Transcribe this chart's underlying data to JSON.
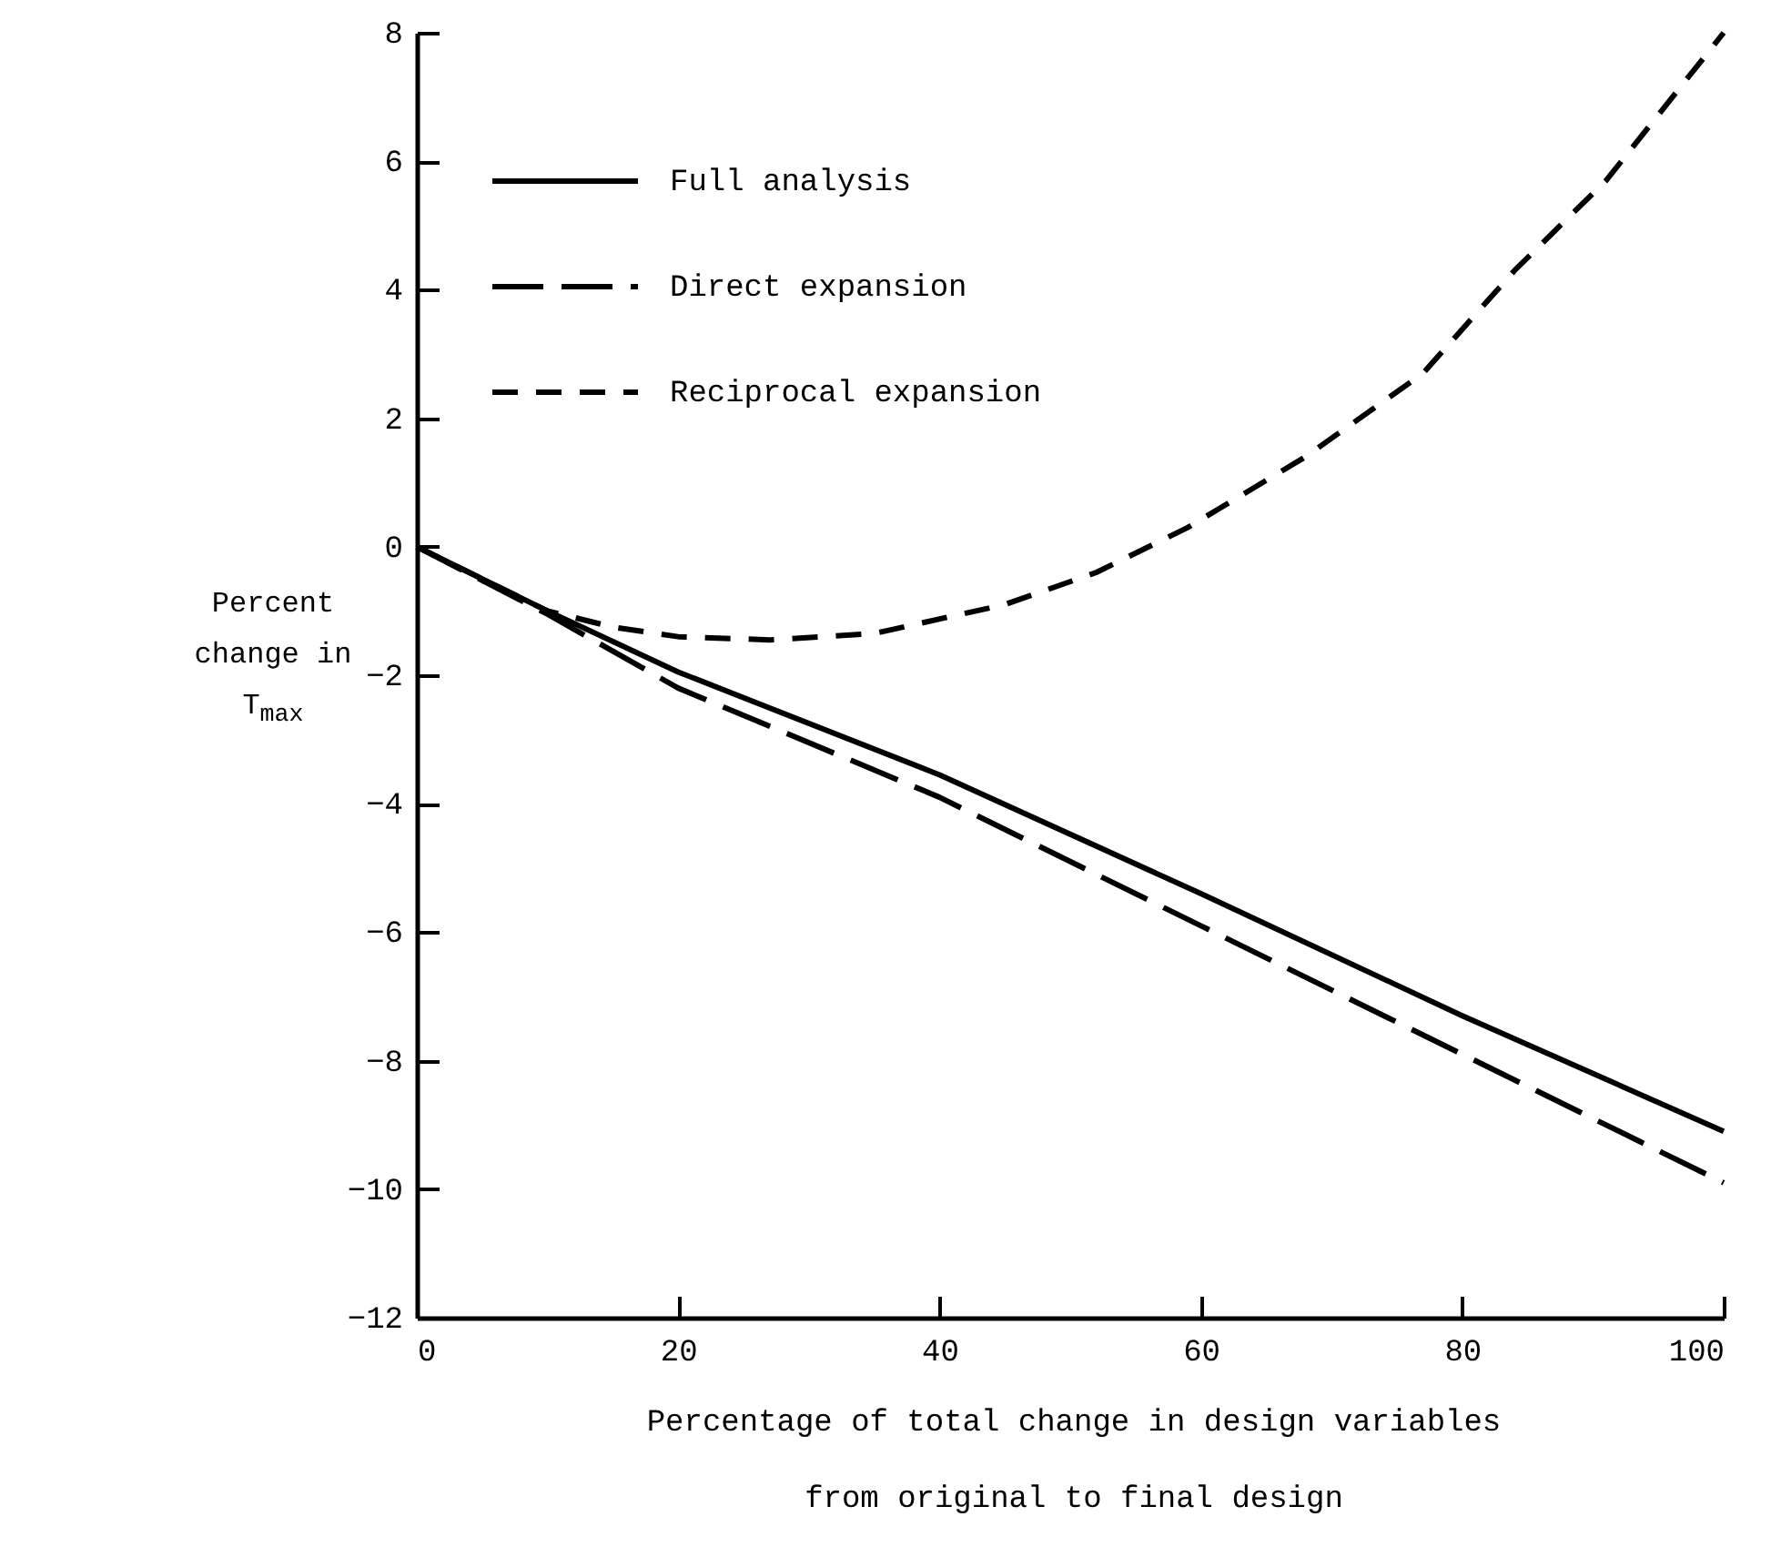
{
  "chart_data": {
    "type": "line",
    "xlabel": "Percentage of total change in design variables from original to final design",
    "ylabel": "Percent change in T$_{max}$",
    "xlim": [
      0,
      100
    ],
    "xticks": [
      0,
      20,
      40,
      60,
      80,
      100
    ],
    "ylim": [
      -12,
      8
    ],
    "yticks": [
      -12,
      -10,
      -8,
      -6,
      -4,
      -2,
      0,
      2,
      4,
      6,
      8
    ],
    "grid": false,
    "legend": "top left",
    "series": [
      {
        "name": "Full analysis",
        "color": "#000000",
        "line_style": "solid",
        "x": [
          0,
          10,
          20,
          40,
          60,
          80,
          100
        ],
        "values": [
          0,
          -1.0,
          -1.95,
          -3.55,
          -5.4,
          -7.3,
          -9.1
        ]
      },
      {
        "name": "Direct expansion",
        "color": "#000000",
        "line_style": "dashed",
        "x": [
          0,
          10,
          20,
          40,
          60,
          80,
          100
        ],
        "values": [
          0,
          -1.05,
          -2.2,
          -3.9,
          -5.9,
          -7.9,
          -9.9
        ]
      },
      {
        "name": "Reciprocal expansion",
        "color": "#000000",
        "line_style": "dashed",
        "x": [
          0,
          5,
          10,
          15,
          20,
          27,
          35,
          45,
          52,
          59,
          68,
          77,
          84,
          91,
          100
        ],
        "values": [
          0,
          -0.5,
          -1.0,
          -1.25,
          -1.4,
          -1.45,
          -1.35,
          -0.9,
          -0.4,
          0.3,
          1.4,
          2.7,
          4.3,
          5.7,
          8.0
        ]
      }
    ]
  }
}
